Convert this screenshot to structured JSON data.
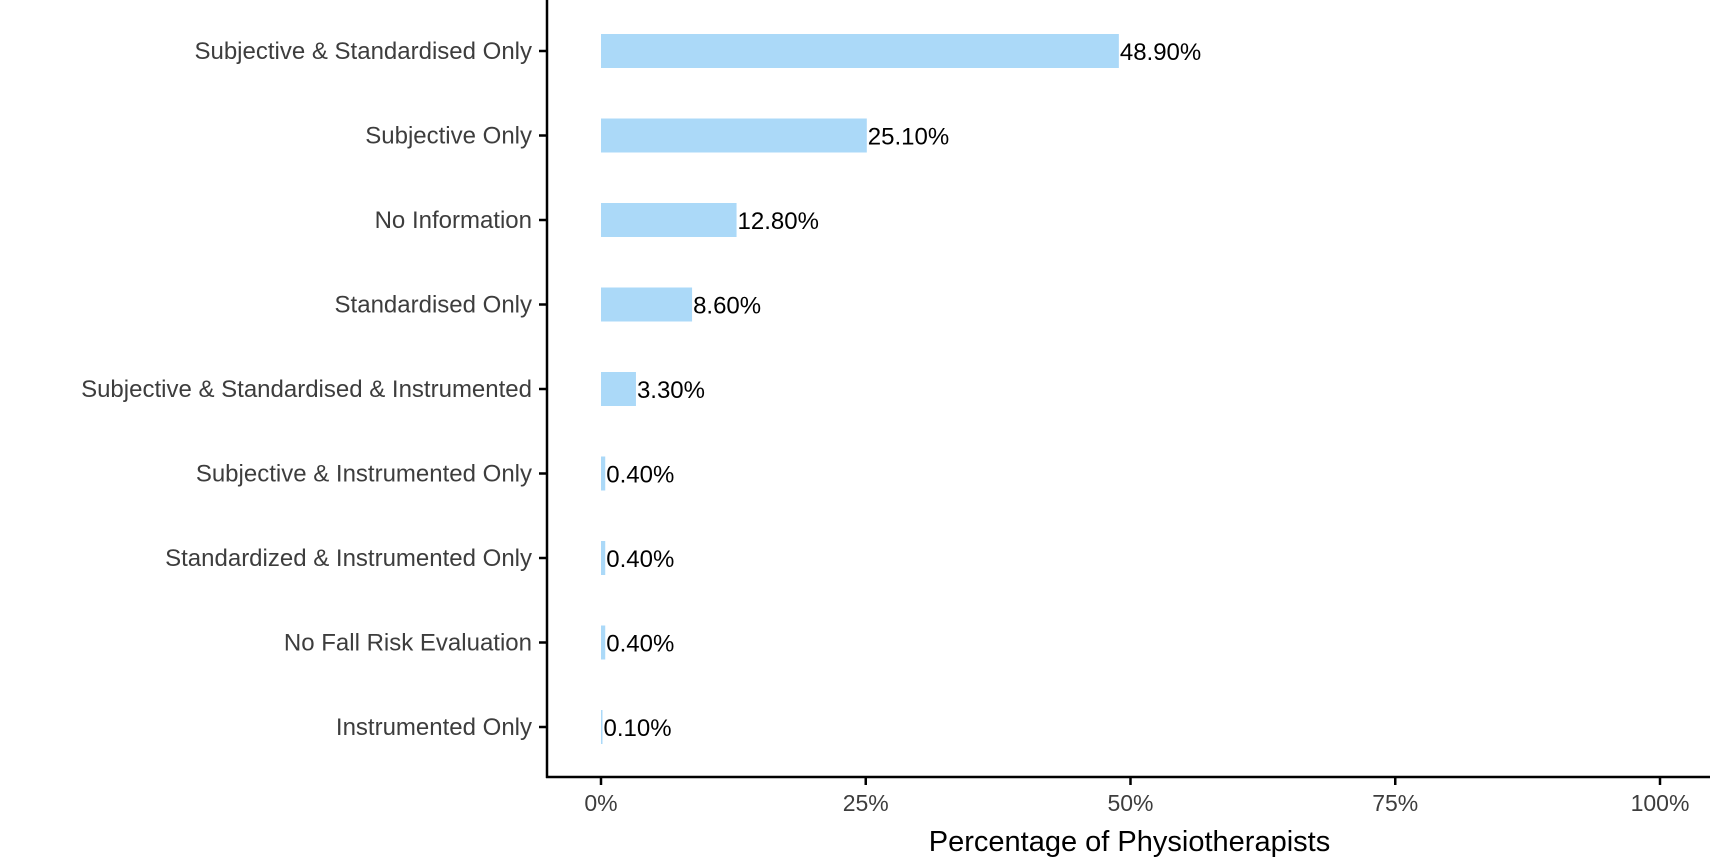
{
  "chart_data": {
    "type": "bar",
    "orientation": "horizontal",
    "categories": [
      "Subjective & Standardised Only",
      "Subjective Only",
      "No Information",
      "Standardised Only",
      "Subjective & Standardised & Instrumented",
      "Subjective & Instrumented Only",
      "Standardized & Instrumented Only",
      "No Fall Risk Evaluation",
      "Instrumented Only"
    ],
    "values": [
      48.9,
      25.1,
      12.8,
      8.6,
      3.3,
      0.4,
      0.4,
      0.4,
      0.1
    ],
    "value_labels": [
      "48.90%",
      "25.10%",
      "12.80%",
      "8.60%",
      "3.30%",
      "0.40%",
      "0.40%",
      "0.40%",
      "0.10%"
    ],
    "xlabel": "Percentage of Physiotherapists",
    "ylabel": "",
    "xlim": [
      0,
      100
    ],
    "x_ticks": [
      0,
      25,
      50,
      75,
      100
    ],
    "x_tick_labels": [
      "0%",
      "25%",
      "50%",
      "75%",
      "100%"
    ],
    "bar_color": "#abd9f8",
    "grid": false
  }
}
